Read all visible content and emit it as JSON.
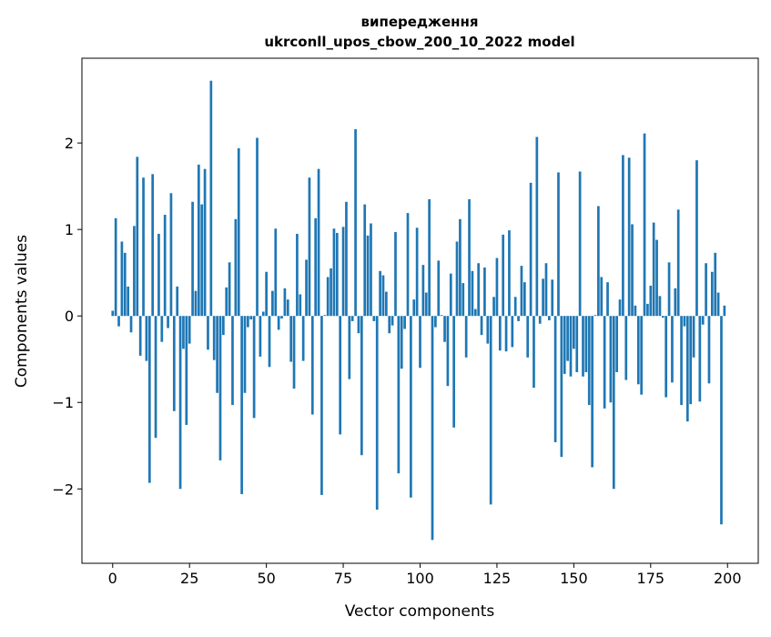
{
  "chart_data": {
    "type": "bar",
    "title": [
      "випередження",
      "ukrconll_upos_cbow_200_10_2022 model"
    ],
    "xlabel": "Vector components",
    "ylabel": "Components values",
    "xlim": [
      -10,
      210
    ],
    "ylim": [
      -2.86,
      2.98
    ],
    "xticks": [
      0,
      25,
      50,
      75,
      100,
      125,
      150,
      175,
      200
    ],
    "yticks": [
      -2,
      -1,
      0,
      1,
      2
    ],
    "ytick_labels": [
      "−2",
      "−1",
      "0",
      "1",
      "2"
    ],
    "grid": false,
    "bar_color": "#1f77b4",
    "values": [
      0.06,
      1.13,
      -0.12,
      0.86,
      0.73,
      0.34,
      -0.19,
      1.04,
      1.84,
      -0.46,
      1.6,
      -0.52,
      -1.93,
      1.64,
      -1.41,
      0.95,
      -0.3,
      1.17,
      -0.14,
      1.42,
      -1.1,
      0.34,
      -2.0,
      -0.38,
      -1.26,
      -0.32,
      1.32,
      0.29,
      1.75,
      1.29,
      1.7,
      -0.39,
      2.72,
      -0.51,
      -0.89,
      -1.67,
      -0.22,
      0.33,
      0.62,
      -1.03,
      1.12,
      1.94,
      -2.06,
      -0.89,
      -0.13,
      -0.04,
      -1.18,
      2.06,
      -0.47,
      0.05,
      0.51,
      -0.59,
      0.29,
      1.01,
      -0.16,
      -0.03,
      0.32,
      0.19,
      -0.53,
      -0.84,
      0.95,
      0.25,
      -0.52,
      0.65,
      1.6,
      -1.14,
      1.13,
      1.7,
      -2.07,
      0.01,
      0.45,
      0.55,
      1.01,
      0.96,
      -1.37,
      1.03,
      1.32,
      -0.73,
      -0.06,
      2.16,
      -0.2,
      -1.61,
      1.29,
      0.93,
      1.07,
      -0.06,
      -2.24,
      0.52,
      0.47,
      0.28,
      -0.2,
      -0.11,
      0.97,
      -1.82,
      -0.61,
      -0.15,
      1.19,
      -2.1,
      0.19,
      1.02,
      -0.6,
      0.59,
      0.27,
      1.35,
      -2.59,
      -0.13,
      0.64,
      0.01,
      -0.3,
      -0.81,
      0.49,
      -1.29,
      0.86,
      1.12,
      0.38,
      -0.48,
      1.35,
      0.52,
      0.08,
      0.61,
      -0.22,
      0.56,
      -0.32,
      -2.18,
      0.22,
      0.67,
      -0.4,
      0.94,
      -0.41,
      0.99,
      -0.36,
      0.22,
      -0.06,
      0.58,
      0.39,
      -0.48,
      1.54,
      -0.83,
      2.07,
      -0.09,
      0.43,
      0.61,
      -0.05,
      0.42,
      -1.46,
      1.66,
      -1.63,
      -0.67,
      -0.52,
      -0.7,
      -0.38,
      -0.65,
      1.67,
      -0.7,
      -0.65,
      -1.03,
      -1.75,
      0.01,
      1.27,
      0.45,
      -1.07,
      0.39,
      -1.0,
      -2.0,
      -0.65,
      0.19,
      1.86,
      -0.74,
      1.83,
      1.06,
      0.12,
      -0.79,
      -0.91,
      2.11,
      0.14,
      0.35,
      1.08,
      0.88,
      0.23,
      -0.02,
      -0.94,
      0.62,
      -0.77,
      0.32,
      1.23,
      -1.03,
      -0.12,
      -1.22,
      -1.02,
      -0.48,
      1.8,
      -0.99,
      -0.1,
      0.61,
      -0.78,
      0.51,
      0.73,
      0.27,
      -2.41,
      0.12
    ]
  }
}
